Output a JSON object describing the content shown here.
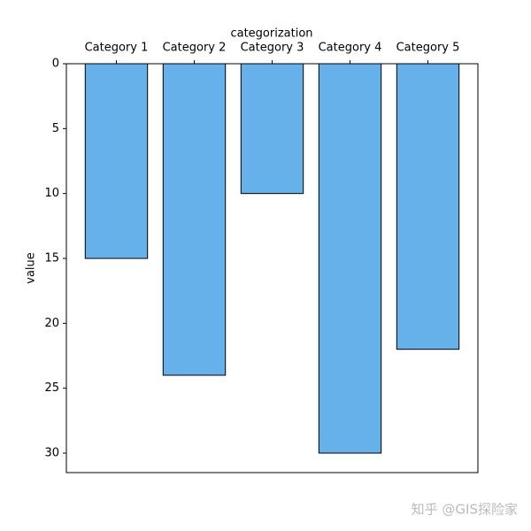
{
  "chart_data": {
    "type": "bar",
    "xlabel": "categorization",
    "ylabel": "value",
    "categories": [
      "Category 1",
      "Category 2",
      "Category 3",
      "Category 4",
      "Category 5"
    ],
    "values": [
      15,
      24,
      10,
      30,
      22
    ],
    "color": "#67b1ea",
    "edgecolor": "#000000",
    "ylim": [
      0,
      31.5
    ],
    "yticks": [
      0,
      5,
      10,
      15,
      20,
      25,
      30
    ],
    "invert_y": true,
    "xaxis_position": "top",
    "grid": false
  },
  "watermark": "知乎 @GIS探险家"
}
